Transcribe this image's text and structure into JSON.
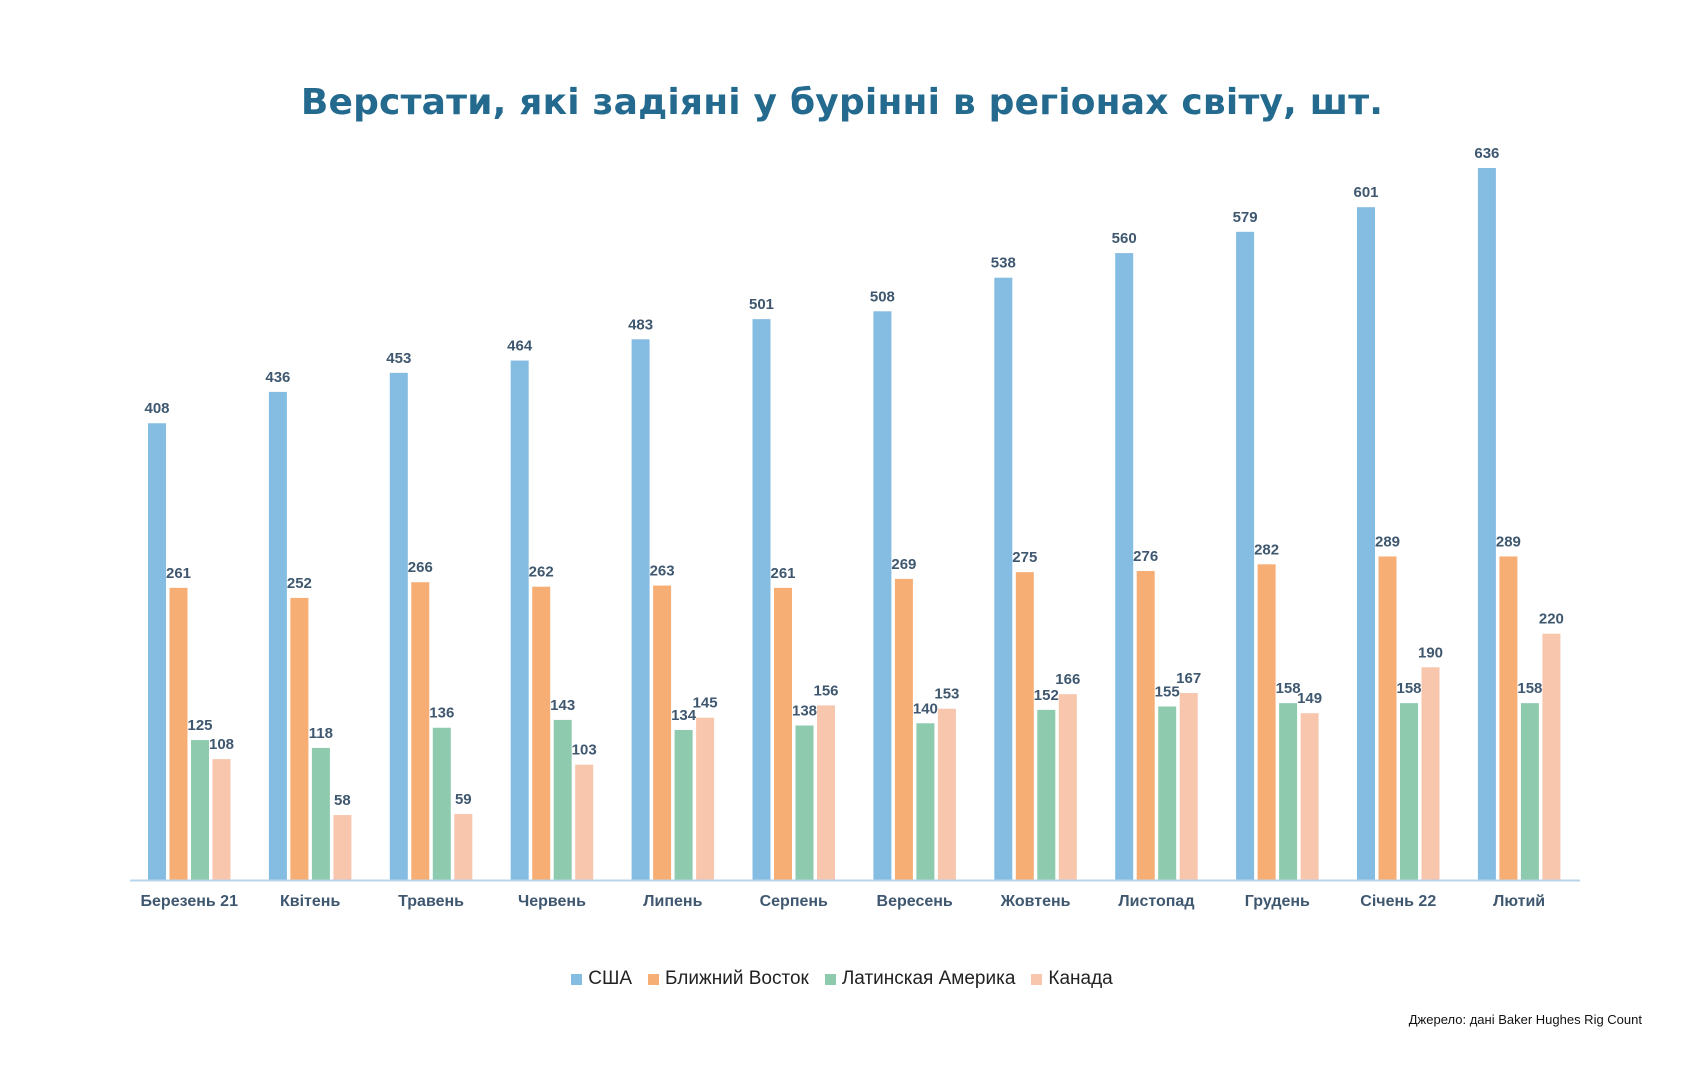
{
  "chart_data": {
    "type": "bar",
    "title": "Верстати, які задіяні у бурінні в регіонах світу, шт.",
    "categories": [
      "Березень 21",
      "Квітень",
      "Травень",
      "Червень",
      "Липень",
      "Серпень",
      "Вересень",
      "Жовтень",
      "Листопад",
      "Грудень",
      "Січень 22",
      "Лютий"
    ],
    "series": [
      {
        "name": "США",
        "color": "#85bce2",
        "values": [
          408,
          436,
          453,
          464,
          483,
          501,
          508,
          538,
          560,
          579,
          601,
          636
        ]
      },
      {
        "name": "Ближний Восток",
        "color": "#f6ae74",
        "values": [
          261,
          252,
          266,
          262,
          263,
          261,
          269,
          275,
          276,
          282,
          289,
          289
        ]
      },
      {
        "name": "Латинская Америка",
        "color": "#8ecbae",
        "values": [
          125,
          118,
          136,
          143,
          134,
          138,
          140,
          152,
          155,
          158,
          158,
          158
        ]
      },
      {
        "name": "Канада",
        "color": "#f7c6ad",
        "values": [
          108,
          58,
          59,
          103,
          145,
          156,
          153,
          166,
          167,
          149,
          190,
          220
        ]
      }
    ],
    "ylim": [
      0,
      700
    ],
    "grid": false,
    "legend": "bottom",
    "label_color": "#3f5870",
    "axis_color": "#b9d4ea"
  },
  "source": "Джерело: дані Baker Hughes Rig Count"
}
